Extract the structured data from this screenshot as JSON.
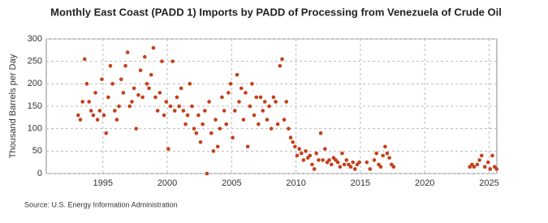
{
  "chart_data": {
    "type": "scatter",
    "title": "Monthly East Coast (PADD 1) Imports by PADD of Processing from Venezuela of Crude Oil",
    "y_label": "Thousand Barrels per Day",
    "source": "Source: U.S. Energy Information Administration",
    "color": "#c4401a",
    "grid": true,
    "xlim": [
      1990.6,
      2025.6
    ],
    "xticks": [
      1995,
      2000,
      2005,
      2010,
      2015,
      2020,
      2025
    ],
    "ylim": [
      0,
      300
    ],
    "yticks": [
      0,
      50,
      100,
      150,
      200,
      250,
      300
    ],
    "x": [
      1993.08,
      1993.25,
      1993.42,
      1993.58,
      1993.75,
      1993.92,
      1994.08,
      1994.25,
      1994.42,
      1994.58,
      1994.75,
      1994.92,
      1995.08,
      1995.25,
      1995.42,
      1995.58,
      1995.75,
      1995.92,
      1996.08,
      1996.25,
      1996.42,
      1996.58,
      1996.75,
      1996.92,
      1997.08,
      1997.25,
      1997.42,
      1997.58,
      1997.75,
      1997.92,
      1998.08,
      1998.25,
      1998.42,
      1998.58,
      1998.75,
      1998.92,
      1999.08,
      1999.25,
      1999.42,
      1999.58,
      1999.75,
      1999.92,
      2000.08,
      2000.25,
      2000.42,
      2000.58,
      2000.75,
      2000.92,
      2001.08,
      2001.25,
      2001.42,
      2001.58,
      2001.75,
      2001.92,
      2002.08,
      2002.25,
      2002.42,
      2002.58,
      2002.75,
      2002.92,
      2003.08,
      2003.25,
      2003.42,
      2003.58,
      2003.75,
      2003.92,
      2004.08,
      2004.25,
      2004.42,
      2004.58,
      2004.75,
      2004.92,
      2005.08,
      2005.25,
      2005.42,
      2005.58,
      2005.75,
      2005.92,
      2006.08,
      2006.25,
      2006.42,
      2006.58,
      2006.75,
      2006.92,
      2007.08,
      2007.25,
      2007.42,
      2007.58,
      2007.75,
      2007.92,
      2008.08,
      2008.25,
      2008.42,
      2008.58,
      2008.75,
      2008.92,
      2009.08,
      2009.25,
      2009.42,
      2009.58,
      2009.75,
      2009.92,
      2010.08,
      2010.25,
      2010.42,
      2010.58,
      2010.75,
      2010.92,
      2011.08,
      2011.25,
      2011.42,
      2011.58,
      2011.75,
      2011.92,
      2012.08,
      2012.25,
      2012.42,
      2012.58,
      2012.75,
      2012.92,
      2013.08,
      2013.25,
      2013.42,
      2013.58,
      2013.75,
      2013.92,
      2014.08,
      2014.25,
      2014.42,
      2014.58,
      2014.75,
      2014.92,
      2015.5,
      2015.75,
      2016.08,
      2016.25,
      2016.42,
      2016.58,
      2016.75,
      2016.92,
      2017.08,
      2017.25,
      2017.42,
      2017.58,
      2023.5,
      2023.67,
      2023.83,
      2024.08,
      2024.25,
      2024.42,
      2024.67,
      2024.92,
      2025.08,
      2025.25,
      2025.42,
      2025.58
    ],
    "values": [
      130,
      120,
      160,
      255,
      200,
      160,
      140,
      130,
      180,
      120,
      140,
      210,
      130,
      90,
      170,
      240,
      200,
      140,
      120,
      150,
      210,
      180,
      240,
      270,
      150,
      160,
      190,
      100,
      175,
      230,
      170,
      260,
      200,
      190,
      220,
      280,
      170,
      140,
      180,
      250,
      130,
      160,
      55,
      150,
      250,
      140,
      170,
      150,
      190,
      140,
      110,
      130,
      200,
      150,
      100,
      90,
      130,
      70,
      110,
      140,
      0,
      160,
      90,
      50,
      120,
      60,
      100,
      170,
      140,
      110,
      180,
      200,
      80,
      140,
      220,
      160,
      190,
      120,
      180,
      60,
      150,
      200,
      130,
      170,
      110,
      170,
      140,
      160,
      120,
      150,
      100,
      170,
      160,
      110,
      240,
      255,
      120,
      160,
      100,
      80,
      70,
      60,
      40,
      55,
      45,
      30,
      50,
      35,
      40,
      20,
      10,
      45,
      30,
      90,
      30,
      55,
      25,
      30,
      20,
      35,
      30,
      25,
      15,
      45,
      20,
      30,
      20,
      15,
      25,
      10,
      20,
      25,
      25,
      10,
      30,
      45,
      20,
      15,
      40,
      60,
      45,
      35,
      20,
      15,
      15,
      20,
      15,
      20,
      30,
      40,
      15,
      25,
      10,
      40,
      15,
      10
    ]
  }
}
